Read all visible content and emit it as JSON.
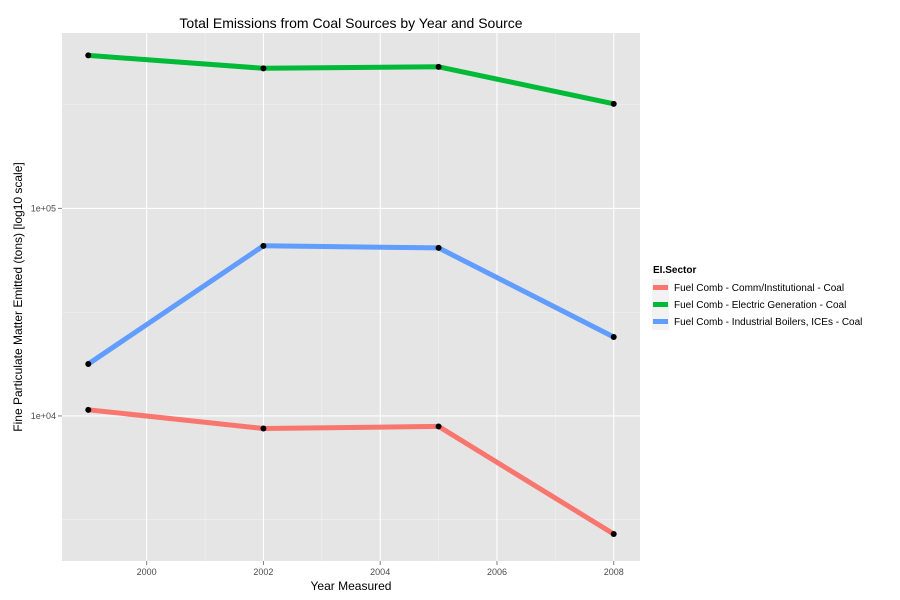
{
  "chart_data": {
    "type": "line",
    "title": "Total Emissions from Coal Sources by Year and Source",
    "xlabel": "Year Measured",
    "ylabel": "Fine Particulate Matter Emitted (tons) [log10 scale]",
    "x": [
      1999,
      2002,
      2005,
      2008
    ],
    "x_ticks": [
      2000,
      2002,
      2004,
      2006,
      2008
    ],
    "x_tick_labels": [
      "2000",
      "2002",
      "2004",
      "2006",
      "2008"
    ],
    "xlim": [
      1998.55,
      2008.45
    ],
    "y_scale": "log10",
    "ylim": [
      2000,
      700000
    ],
    "y_ticks": [
      10000,
      100000
    ],
    "y_tick_labels": [
      "1e+04",
      "1e+05"
    ],
    "y_minor_ticks": [
      3162,
      31623,
      316228
    ],
    "grid": true,
    "legend_title": "EI.Sector",
    "legend_position": "right",
    "series": [
      {
        "name": "Fuel Comb - Comm/Institutional - Coal",
        "color": "#F8766D",
        "values": [
          10700,
          8700,
          8900,
          2700
        ]
      },
      {
        "name": "Fuel Comb - Electric Generation - Coal",
        "color": "#00BA38",
        "values": [
          546000,
          473000,
          481000,
          319000
        ]
      },
      {
        "name": "Fuel Comb - Industrial Boilers, ICEs - Coal",
        "color": "#619CFF",
        "values": [
          17800,
          66000,
          64500,
          24000
        ]
      }
    ]
  }
}
